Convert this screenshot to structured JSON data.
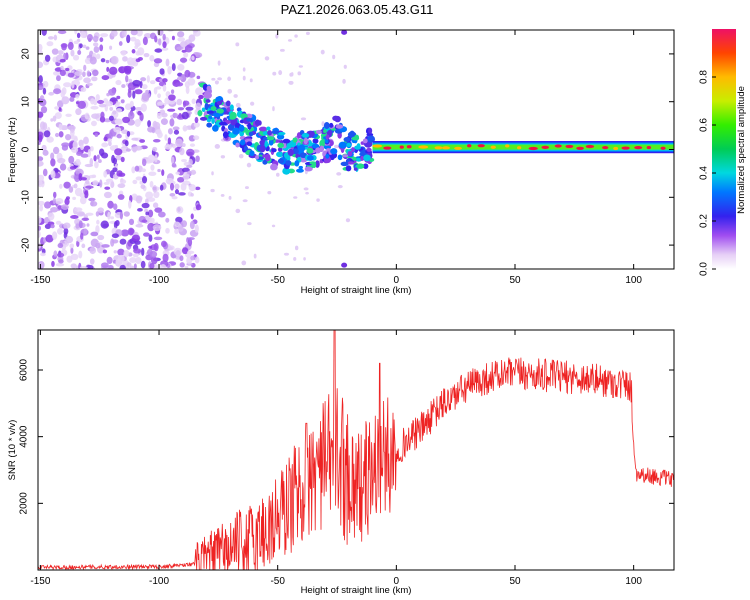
{
  "title": "PAZ1.2026.063.05.43.G11",
  "colors": {
    "background": "#ffffff",
    "axis": "#000000",
    "snr_line": "#ee2222",
    "spectrogram_peak": "#dd1144"
  },
  "chart_data": [
    {
      "type": "heatmap",
      "name": "spectrogram",
      "xlabel": "Height of straight line (km)",
      "ylabel": "Frequency (Hz)",
      "xlim": [
        -151,
        117
      ],
      "ylim": [
        -25,
        25
      ],
      "xticks": [
        -150,
        -100,
        -50,
        0,
        50,
        100
      ],
      "yticks": [
        -20,
        -10,
        0,
        10,
        20
      ],
      "description_points": {
        "noise_region_x": [
          -151,
          -83
        ],
        "descending_streak": [
          {
            "x": -83,
            "y": 11
          },
          {
            "x": -75,
            "y": 7
          },
          {
            "x": -65,
            "y": 4
          },
          {
            "x": -55,
            "y": 1
          },
          {
            "x": -45,
            "y": -1
          },
          {
            "x": -35,
            "y": 0
          },
          {
            "x": -25,
            "y": 3
          },
          {
            "x": -20,
            "y": -1
          },
          {
            "x": -10,
            "y": 0.5
          }
        ],
        "steady_line": {
          "x_start": -10,
          "x_end": 117,
          "y": 0.5
        }
      },
      "colorbar": {
        "label": "Normalized spectral amplitude",
        "ticks": [
          "0.0",
          "0.2",
          "0.4",
          "0.6",
          "0.8"
        ],
        "range": [
          0,
          1
        ]
      }
    },
    {
      "type": "line",
      "name": "snr",
      "xlabel": "Height of straight line (km)",
      "ylabel": "SNR (10 * v/v)",
      "xlim": [
        -151,
        117
      ],
      "ylim": [
        0,
        7200
      ],
      "xticks": [
        -150,
        -100,
        -50,
        0,
        50,
        100
      ],
      "yticks": [
        2000,
        4000,
        6000
      ],
      "envelope": [
        {
          "x": -151,
          "y": 80
        },
        {
          "x": -100,
          "y": 100
        },
        {
          "x": -85,
          "y": 180
        },
        {
          "x": -75,
          "y": 500
        },
        {
          "x": -60,
          "y": 900
        },
        {
          "x": -50,
          "y": 1500
        },
        {
          "x": -40,
          "y": 2500
        },
        {
          "x": -30,
          "y": 3200
        },
        {
          "x": -25,
          "y": 3500
        },
        {
          "x": -20,
          "y": 2800
        },
        {
          "x": -15,
          "y": 2500
        },
        {
          "x": -8,
          "y": 3200
        },
        {
          "x": 0,
          "y": 3600
        },
        {
          "x": 10,
          "y": 4200
        },
        {
          "x": 20,
          "y": 5000
        },
        {
          "x": 30,
          "y": 5500
        },
        {
          "x": 40,
          "y": 5800
        },
        {
          "x": 50,
          "y": 5900
        },
        {
          "x": 60,
          "y": 5850
        },
        {
          "x": 70,
          "y": 5800
        },
        {
          "x": 80,
          "y": 5750
        },
        {
          "x": 90,
          "y": 5650
        },
        {
          "x": 99,
          "y": 5500
        },
        {
          "x": 100,
          "y": 3800
        },
        {
          "x": 101,
          "y": 2900
        },
        {
          "x": 117,
          "y": 2700
        }
      ],
      "spikes": [
        {
          "x": -26,
          "y": 7200
        },
        {
          "x": -7,
          "y": 6200
        },
        {
          "x": -38,
          "y": 4400
        }
      ]
    }
  ]
}
